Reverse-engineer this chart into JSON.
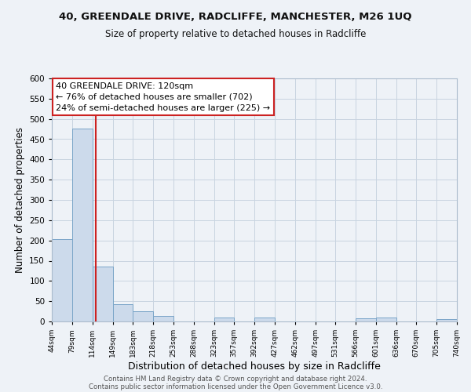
{
  "title1": "40, GREENDALE DRIVE, RADCLIFFE, MANCHESTER, M26 1UQ",
  "title2": "Size of property relative to detached houses in Radcliffe",
  "xlabel": "Distribution of detached houses by size in Radcliffe",
  "ylabel": "Number of detached properties",
  "bar_edges": [
    44,
    79,
    114,
    149,
    183,
    218,
    253,
    288,
    323,
    357,
    392,
    427,
    462,
    497,
    531,
    566,
    601,
    636,
    670,
    705,
    740
  ],
  "bar_heights": [
    204,
    476,
    136,
    43,
    25,
    14,
    0,
    0,
    10,
    0,
    9,
    0,
    0,
    0,
    0,
    7,
    9,
    0,
    0,
    5
  ],
  "bar_color": "#ccdaeb",
  "bar_edgecolor": "#7aa5c8",
  "vertical_line_x": 120,
  "vertical_line_color": "#cc2222",
  "annotation_line1": "40 GREENDALE DRIVE: 120sqm",
  "annotation_line2": "← 76% of detached houses are smaller (702)",
  "annotation_line3": "24% of semi-detached houses are larger (225) →",
  "ylim": [
    0,
    600
  ],
  "yticks": [
    0,
    50,
    100,
    150,
    200,
    250,
    300,
    350,
    400,
    450,
    500,
    550,
    600
  ],
  "tick_labels": [
    "44sqm",
    "79sqm",
    "114sqm",
    "149sqm",
    "183sqm",
    "218sqm",
    "253sqm",
    "288sqm",
    "323sqm",
    "357sqm",
    "392sqm",
    "427sqm",
    "462sqm",
    "497sqm",
    "531sqm",
    "566sqm",
    "601sqm",
    "636sqm",
    "670sqm",
    "705sqm",
    "740sqm"
  ],
  "footer1": "Contains HM Land Registry data © Crown copyright and database right 2024.",
  "footer2": "Contains public sector information licensed under the Open Government Licence v3.0.",
  "bg_color": "#eef2f7",
  "grid_color": "#c8d4e0",
  "title1_fontsize": 9.5,
  "title2_fontsize": 8.5,
  "annot_fontsize": 8.0,
  "xlabel_fontsize": 9.0,
  "ylabel_fontsize": 8.5,
  "footer_fontsize": 6.2,
  "xtick_fontsize": 6.5,
  "ytick_fontsize": 7.5
}
